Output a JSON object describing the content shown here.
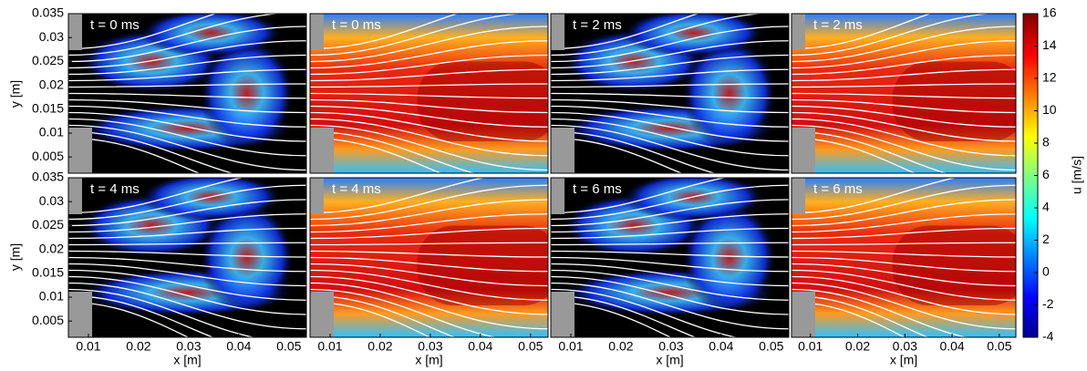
{
  "chart_data": {
    "type": "heatmap",
    "panels": [
      {
        "label": "t = 0 ms",
        "kind": "scalar"
      },
      {
        "label": "t = 0 ms",
        "kind": "velocity"
      },
      {
        "label": "t = 2 ms",
        "kind": "scalar"
      },
      {
        "label": "t = 2 ms",
        "kind": "velocity"
      },
      {
        "label": "t = 4 ms",
        "kind": "scalar"
      },
      {
        "label": "t = 4 ms",
        "kind": "velocity"
      },
      {
        "label": "t = 6 ms",
        "kind": "scalar"
      },
      {
        "label": "t = 6 ms",
        "kind": "velocity"
      }
    ],
    "x_label": "x [m]",
    "y_label": "y [m]",
    "xlim": [
      0.006,
      0.0535
    ],
    "xticks": [
      0.01,
      0.02,
      0.03,
      0.04,
      0.05
    ],
    "ylim": [
      0.0016,
      0.035
    ],
    "yticks": [
      0.005,
      0.01,
      0.015,
      0.02,
      0.025,
      0.03,
      0.035
    ],
    "colorbar": {
      "label": "u [m/s]",
      "lim": [
        -4,
        16
      ],
      "ticks": [
        -4,
        -2,
        0,
        2,
        4,
        6,
        8,
        10,
        12,
        14,
        16
      ]
    }
  }
}
